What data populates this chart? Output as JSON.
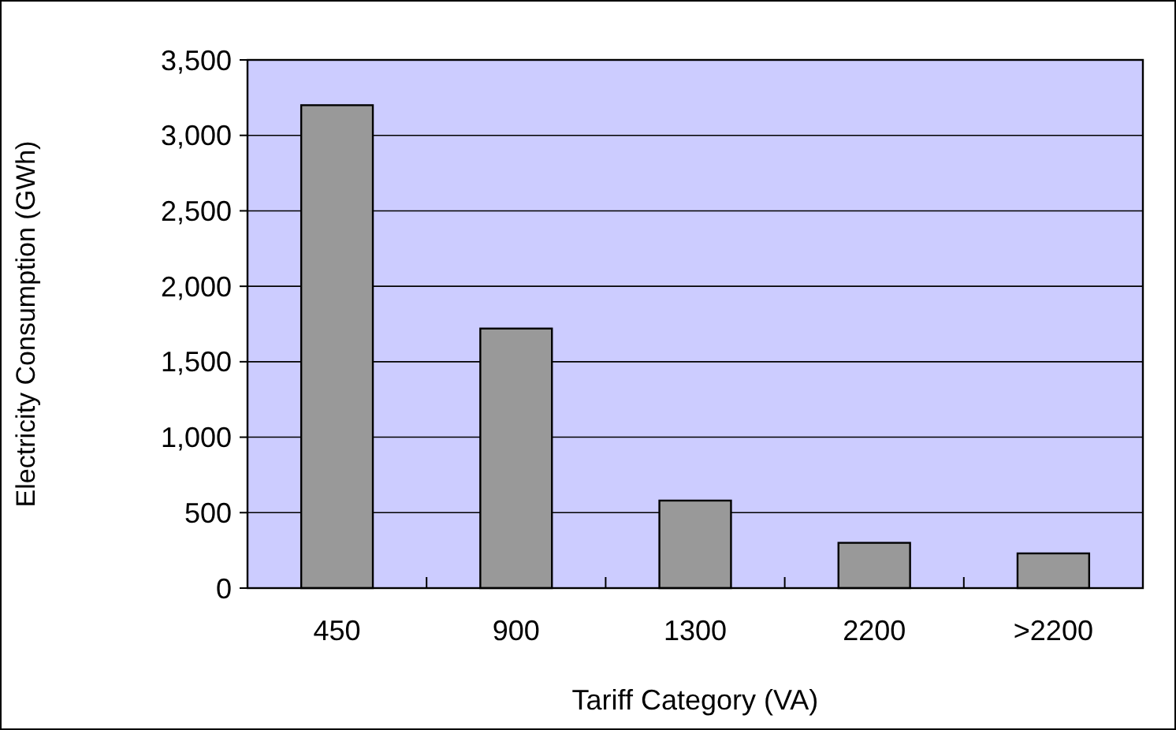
{
  "chart_data": {
    "type": "bar",
    "xlabel": "Tariff Category (VA)",
    "ylabel": "Electricity Consumption (GWh)",
    "categories": [
      "450",
      "900",
      "1300",
      "2200",
      ">2200"
    ],
    "values": [
      3200,
      1720,
      580,
      300,
      230
    ],
    "color": "#999999",
    "ylim": [
      0,
      3500
    ],
    "yticks": [
      0,
      {
        "value": 500,
        "label": "500"
      },
      {
        "value": 1000,
        "label": "1,000"
      },
      {
        "value": 1500,
        "label": "1,500"
      },
      {
        "value": 2000,
        "label": "2,000"
      },
      {
        "value": 2500,
        "label": "2,500"
      },
      {
        "value": 3000,
        "label": "3,000"
      },
      {
        "value": 3500,
        "label": "3,500"
      }
    ],
    "grid": "y"
  }
}
